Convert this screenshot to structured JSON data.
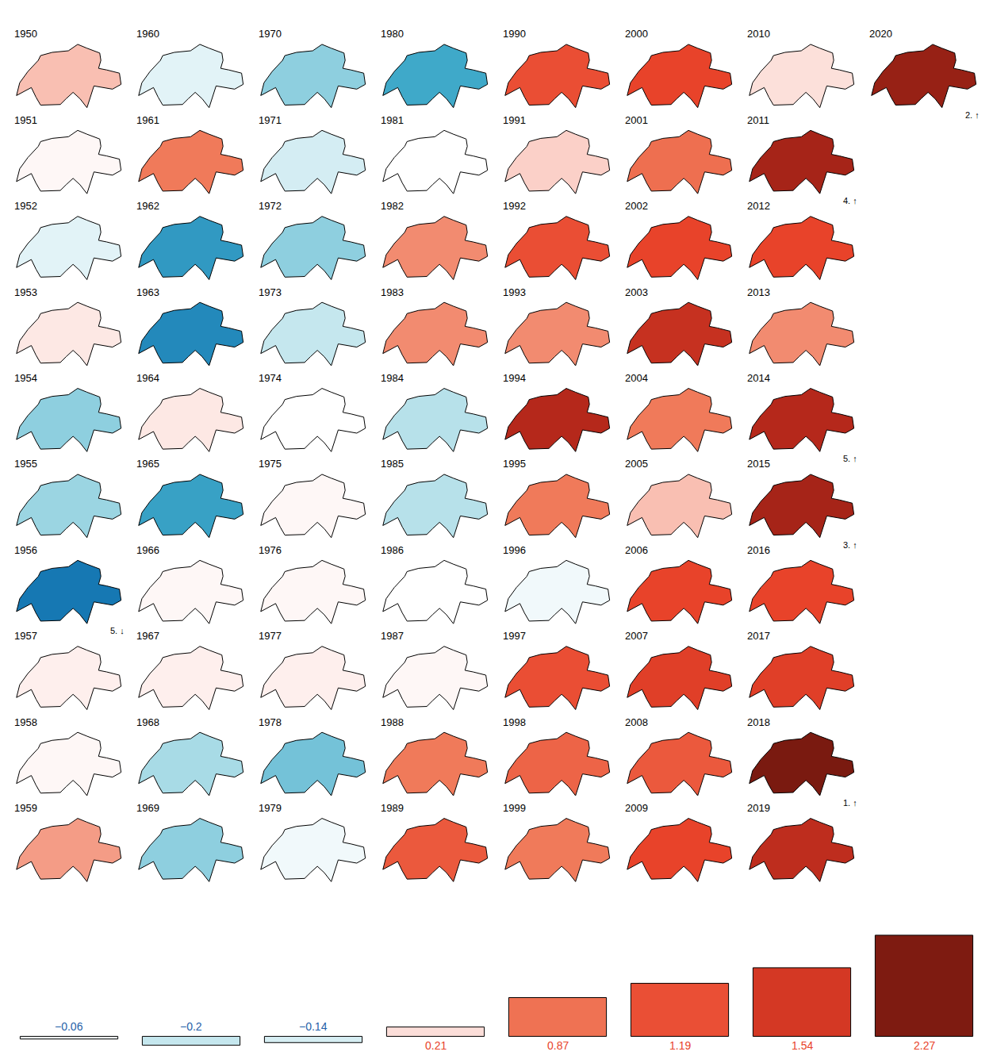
{
  "chart_data": [
    {
      "type": "map_grid",
      "years": [
        1950,
        1951,
        1952,
        1953,
        1954,
        1955,
        1956,
        1957,
        1958,
        1959,
        1960,
        1961,
        1962,
        1963,
        1964,
        1965,
        1966,
        1967,
        1968,
        1969,
        1970,
        1971,
        1972,
        1973,
        1974,
        1975,
        1976,
        1977,
        1978,
        1979,
        1980,
        1981,
        1982,
        1983,
        1984,
        1985,
        1986,
        1987,
        1988,
        1989,
        1990,
        1991,
        1992,
        1993,
        1994,
        1995,
        1996,
        1997,
        1998,
        1999,
        2000,
        2001,
        2002,
        2003,
        2004,
        2005,
        2006,
        2007,
        2008,
        2009,
        2010,
        2011,
        2012,
        2013,
        2014,
        2015,
        2016,
        2017,
        2018,
        2019,
        2020
      ],
      "values": [
        0.4,
        0.05,
        -0.1,
        0.15,
        -0.4,
        -0.35,
        -1.3,
        0.1,
        0.05,
        0.6,
        -0.1,
        0.8,
        -0.9,
        -1.1,
        0.15,
        -0.8,
        0.05,
        0.1,
        -0.3,
        -0.4,
        -0.4,
        -0.15,
        -0.4,
        -0.2,
        0.0,
        0.05,
        0.05,
        0.1,
        -0.5,
        -0.05,
        -0.7,
        0.0,
        0.7,
        0.7,
        -0.25,
        -0.25,
        0.0,
        0.05,
        0.8,
        1.1,
        1.2,
        0.3,
        1.2,
        0.7,
        1.9,
        0.8,
        -0.05,
        1.2,
        1.0,
        0.8,
        1.3,
        0.9,
        1.3,
        1.7,
        0.8,
        0.4,
        1.3,
        1.4,
        1.1,
        1.3,
        0.2,
        2.0,
        1.3,
        0.7,
        1.9,
        2.0,
        1.3,
        1.4,
        2.3,
        1.8,
        2.1
      ],
      "colorscale": [
        [
          -1.5,
          "#0868ac"
        ],
        [
          -0.7,
          "#3fa9c9"
        ],
        [
          -0.3,
          "#a8dbe6"
        ],
        [
          0,
          "#ffffff"
        ],
        [
          0.3,
          "#fbd0c8"
        ],
        [
          0.8,
          "#f07a5a"
        ],
        [
          1.3,
          "#e8432a"
        ],
        [
          1.9,
          "#b5281b"
        ],
        [
          2.3,
          "#7a1a10"
        ]
      ],
      "annotations": [
        {
          "year": 2018,
          "label": "1. ↑"
        },
        {
          "year": 2020,
          "label": "2. ↑"
        },
        {
          "year": 2015,
          "label": "3. ↑"
        },
        {
          "year": 2011,
          "label": "4. ↑"
        },
        {
          "year": 2014,
          "label": "5. ↑"
        },
        {
          "year": 1956,
          "label": "5. ↓"
        }
      ]
    },
    {
      "type": "bar",
      "categories": [
        null,
        null,
        null,
        null,
        null,
        null,
        null,
        null
      ],
      "values": [
        -0.06,
        -0.2,
        -0.14,
        0.21,
        0.87,
        1.19,
        1.54,
        2.27
      ],
      "value_labels": [
        "−0.06",
        "−0.2",
        "−0.14",
        "0.21",
        "0.87",
        "1.19",
        "1.54",
        "2.27"
      ],
      "data_labels": true,
      "ylim": [
        -0.42,
        2.4
      ],
      "tick_labels": false
    }
  ]
}
